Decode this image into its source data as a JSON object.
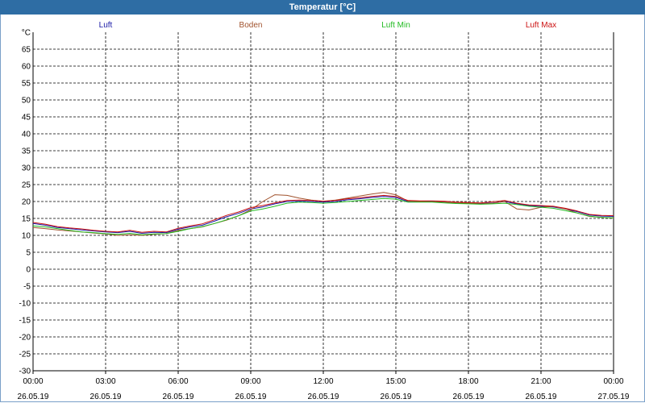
{
  "window": {
    "title": "Temperatur [°C]"
  },
  "colors": {
    "background": "#ffffff",
    "titlebar": "#2e6da4",
    "grid": "#000000"
  },
  "chart_data": {
    "type": "line",
    "ylabel": "°C",
    "ylim": [
      -30,
      70
    ],
    "yticks": [
      -30,
      -25,
      -20,
      -15,
      -10,
      -5,
      0,
      5,
      10,
      15,
      20,
      25,
      30,
      35,
      40,
      45,
      50,
      55,
      60,
      65
    ],
    "xlim": [
      "2019-05-26 00:00",
      "2019-05-27 00:00"
    ],
    "xticks": [
      {
        "time": "00:00",
        "date": "26.05.19"
      },
      {
        "time": "03:00",
        "date": "26.05.19"
      },
      {
        "time": "06:00",
        "date": "26.05.19"
      },
      {
        "time": "09:00",
        "date": "26.05.19"
      },
      {
        "time": "12:00",
        "date": "26.05.19"
      },
      {
        "time": "15:00",
        "date": "26.05.19"
      },
      {
        "time": "18:00",
        "date": "26.05.19"
      },
      {
        "time": "21:00",
        "date": "26.05.19"
      },
      {
        "time": "00:00",
        "date": "27.05.19"
      }
    ],
    "grid": true,
    "legend_position": "top",
    "x": [
      "00:00",
      "00:30",
      "01:00",
      "01:30",
      "02:00",
      "02:30",
      "03:00",
      "03:30",
      "04:00",
      "04:30",
      "05:00",
      "05:30",
      "06:00",
      "06:30",
      "07:00",
      "07:30",
      "08:00",
      "08:30",
      "09:00",
      "09:30",
      "10:00",
      "10:30",
      "11:00",
      "11:30",
      "12:00",
      "12:30",
      "13:00",
      "13:30",
      "14:00",
      "14:30",
      "15:00",
      "15:30",
      "16:00",
      "16:30",
      "17:00",
      "17:30",
      "18:00",
      "18:30",
      "19:00",
      "19:30",
      "20:00",
      "20:30",
      "21:00",
      "21:30",
      "22:00",
      "22:30",
      "23:00",
      "23:30",
      "00:00"
    ],
    "series": [
      {
        "name": "Luft",
        "color": "#1a1aa6",
        "values": [
          13.5,
          13.0,
          12.3,
          12.0,
          11.6,
          11.3,
          11.0,
          10.8,
          11.2,
          10.6,
          10.9,
          10.8,
          11.8,
          12.5,
          13.0,
          14.2,
          15.5,
          16.5,
          17.8,
          18.4,
          19.3,
          20.0,
          20.1,
          20.0,
          19.8,
          20.0,
          20.5,
          20.8,
          21.2,
          21.5,
          21.2,
          20.0,
          20.0,
          20.0,
          19.9,
          19.6,
          19.5,
          19.4,
          19.6,
          20.0,
          19.3,
          18.8,
          18.6,
          18.4,
          17.8,
          17.0,
          16.0,
          15.7,
          15.6
        ]
      },
      {
        "name": "Boden",
        "color": "#a0522d",
        "values": [
          12.3,
          12.0,
          11.6,
          11.3,
          11.0,
          10.7,
          10.4,
          10.0,
          10.2,
          10.0,
          10.3,
          10.5,
          11.5,
          12.0,
          12.5,
          13.5,
          14.5,
          15.8,
          17.5,
          20.0,
          22.0,
          21.8,
          21.0,
          20.4,
          20.1,
          20.4,
          21.0,
          21.6,
          22.2,
          22.7,
          22.0,
          20.1,
          20.0,
          19.9,
          19.8,
          19.6,
          19.5,
          19.3,
          19.5,
          20.0,
          17.8,
          17.5,
          18.3,
          18.6,
          17.8,
          16.6,
          15.6,
          15.3,
          15.1
        ]
      },
      {
        "name": "Luft Min",
        "color": "#22bb22",
        "values": [
          12.8,
          12.5,
          12.0,
          11.5,
          11.0,
          10.8,
          10.5,
          10.3,
          10.6,
          10.2,
          10.4,
          10.5,
          11.2,
          12.0,
          12.6,
          13.5,
          14.6,
          15.8,
          17.2,
          17.8,
          18.6,
          19.5,
          19.8,
          19.7,
          19.5,
          19.7,
          20.0,
          20.3,
          20.6,
          20.9,
          20.7,
          19.8,
          19.8,
          19.8,
          19.6,
          19.4,
          19.3,
          19.2,
          19.3,
          19.5,
          19.1,
          18.6,
          18.3,
          18.0,
          17.3,
          16.6,
          15.7,
          15.3,
          15.2
        ]
      },
      {
        "name": "Luft Max",
        "color": "#cc1111",
        "values": [
          13.8,
          13.3,
          12.6,
          12.2,
          11.9,
          11.5,
          11.2,
          11.0,
          11.5,
          10.9,
          11.2,
          11.0,
          12.1,
          12.8,
          13.4,
          14.6,
          15.9,
          16.9,
          18.2,
          18.8,
          19.6,
          20.3,
          20.4,
          20.3,
          20.1,
          20.3,
          20.8,
          21.1,
          21.5,
          21.8,
          21.5,
          20.3,
          20.2,
          20.2,
          20.1,
          19.8,
          19.7,
          19.6,
          19.9,
          20.3,
          19.5,
          19.0,
          18.8,
          18.6,
          18.0,
          17.2,
          16.2,
          15.9,
          15.8
        ]
      }
    ]
  }
}
